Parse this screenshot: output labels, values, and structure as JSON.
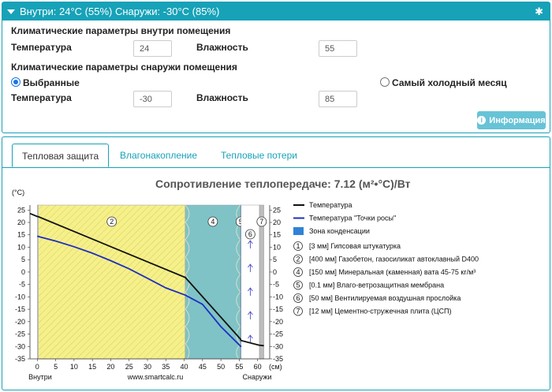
{
  "header": {
    "title": "Внутри: 24°C (55%) Снаружи: -30°C (85%)",
    "gear_icon": "gear-icon"
  },
  "inside": {
    "section_title": "Климатические параметры внутри помещения",
    "temp_label": "Температура",
    "temp_value": "24",
    "hum_label": "Влажность",
    "hum_value": "55"
  },
  "outside": {
    "section_title": "Климатические параметры снаружи помещения",
    "radio_selected": "Выбранные",
    "radio_coldest": "Самый холодный месяц",
    "temp_label": "Температура",
    "temp_value": "-30",
    "hum_label": "Влажность",
    "hum_value": "85"
  },
  "info_button": "Информация",
  "tabs": [
    "Тепловая защита",
    "Влагонакопление",
    "Тепловые потери"
  ],
  "resistance": "Сопротивление теплопередаче: 7.12 (м²•°C)/Вт",
  "chart_data": {
    "type": "line",
    "ylabel": "(°C)",
    "xlabel": "(см)",
    "xlim": [
      -2,
      62
    ],
    "ylim": [
      -35,
      25
    ],
    "x_ticks": [
      "0",
      "5",
      "10",
      "15",
      "20",
      "25",
      "30",
      "35",
      "40",
      "45",
      "50",
      "55",
      "60"
    ],
    "y_ticks": [
      "25",
      "20",
      "15",
      "10",
      "5",
      "0",
      "-5",
      "-10",
      "-15",
      "-20",
      "-25",
      "-30",
      "-35"
    ],
    "bottom_labels": {
      "inside": "Внутри",
      "site": "www.smartcalc.ru",
      "outside": "Снаружи"
    },
    "layers": [
      {
        "num": "1",
        "from": 0,
        "to": 0.3,
        "color": "#d9d9d9"
      },
      {
        "num": "2",
        "from": 0.3,
        "to": 40.3,
        "color": "#f5f08a"
      },
      {
        "num": "4",
        "from": 40.3,
        "to": 55.3,
        "color": "#7fc3c7"
      },
      {
        "num": "5",
        "from": 55.3,
        "to": 55.5,
        "color": "#5aa0d8"
      },
      {
        "num": "6",
        "from": 55.5,
        "to": 60.5,
        "color": "#ffffff"
      },
      {
        "num": "7",
        "from": 60.5,
        "to": 61.7,
        "color": "#bdbdbd"
      }
    ],
    "series": [
      {
        "name": "Температура",
        "color": "#111111",
        "x": [
          -2,
          0,
          0.3,
          40.3,
          55.3,
          55.5,
          60.5,
          61.7
        ],
        "y": [
          23.6,
          22.4,
          22.3,
          -2.2,
          -27.0,
          -27.6,
          -29.5,
          -29.7
        ]
      },
      {
        "name": "Температура \"Точки росы\"",
        "color": "#1f2fbf",
        "x": [
          0,
          0.3,
          5,
          10,
          15,
          20,
          25,
          30,
          35,
          40.3,
          45,
          50,
          55.3,
          55.5
        ],
        "y": [
          14.5,
          14.3,
          12.5,
          10.2,
          7.6,
          4.6,
          1.3,
          -2.5,
          -6.4,
          -9.3,
          -13,
          -22,
          -29.8,
          -30.2
        ]
      }
    ],
    "legend": [
      {
        "kind": "line",
        "color": "#111111",
        "label": "Температура"
      },
      {
        "kind": "line",
        "color": "#1f2fbf",
        "label": "Температура \"Точки росы\""
      },
      {
        "kind": "box",
        "color": "#2f83d6",
        "label": "Зона конденсации"
      },
      {
        "kind": "num",
        "num": "1",
        "label": "[3 мм] Гипсовая штукатурка"
      },
      {
        "kind": "num",
        "num": "2",
        "label": "[400 мм] Газобетон, газосиликат автоклавный D400"
      },
      {
        "kind": "num",
        "num": "4",
        "label": "[150 мм] Минеральная (каменная) вата 45-75 кг/м³"
      },
      {
        "kind": "num",
        "num": "5",
        "label": "[0.1 мм] Влаго-ветрозащитная мембрана"
      },
      {
        "kind": "num",
        "num": "6",
        "label": "[50 мм] Вентилируемая воздушная прослойка"
      },
      {
        "kind": "num",
        "num": "7",
        "label": "[12 мм] Цементно-стружечная плита (ЦСП)"
      }
    ]
  }
}
